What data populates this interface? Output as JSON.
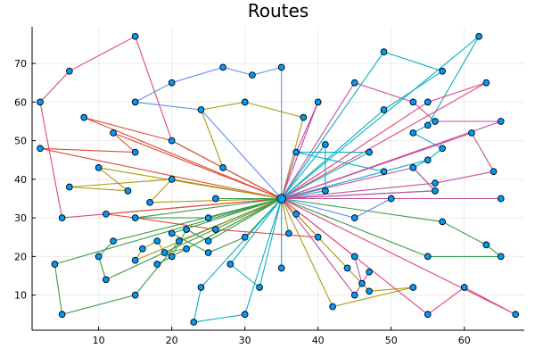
{
  "chart_data": {
    "type": "line",
    "title": "Routes",
    "xlabel": "",
    "ylabel": "",
    "xlim": [
      0.9,
      68.2
    ],
    "ylim": [
      0.9,
      79.5
    ],
    "xticks": [
      10,
      20,
      30,
      40,
      50,
      60
    ],
    "yticks": [
      10,
      20,
      30,
      40,
      50,
      60,
      70
    ],
    "grid": true,
    "legend": "none",
    "depot": [
      35,
      35
    ],
    "marker_color": "#009AFA",
    "series": [
      {
        "color": "#E0457B",
        "points": [
          [
            35,
            35
          ],
          [
            5,
            30
          ],
          [
            2,
            60
          ],
          [
            6,
            68
          ],
          [
            15,
            77
          ],
          [
            20,
            50
          ],
          [
            35,
            35
          ]
        ]
      },
      {
        "color": "#5B8DEB",
        "points": [
          [
            35,
            35
          ],
          [
            35,
            69
          ],
          [
            31,
            67
          ],
          [
            27,
            69
          ],
          [
            20,
            65
          ],
          [
            15,
            60
          ],
          [
            24,
            58
          ],
          [
            35,
            35
          ]
        ]
      },
      {
        "color": "#A89A14",
        "points": [
          [
            35,
            35
          ],
          [
            38,
            56
          ],
          [
            30,
            60
          ],
          [
            24,
            58
          ],
          [
            27,
            43
          ],
          [
            35,
            35
          ]
        ]
      },
      {
        "color": "#C54D9E",
        "points": [
          [
            35,
            35
          ],
          [
            40,
            60
          ],
          [
            37,
            47
          ],
          [
            35,
            35
          ]
        ]
      },
      {
        "color": "#C54D9E",
        "points": [
          [
            35,
            35
          ],
          [
            45,
            65
          ],
          [
            53,
            60
          ],
          [
            56,
            55
          ],
          [
            65,
            55
          ],
          [
            35,
            35
          ]
        ]
      },
      {
        "color": "#0EADC2",
        "points": [
          [
            35,
            35
          ],
          [
            49,
            73
          ],
          [
            57,
            68
          ],
          [
            49,
            58
          ],
          [
            35,
            35
          ]
        ]
      },
      {
        "color": "#0EADC2",
        "points": [
          [
            35,
            35
          ],
          [
            62,
            77
          ],
          [
            55,
            54
          ],
          [
            53,
            52
          ],
          [
            57,
            48
          ],
          [
            55,
            45
          ],
          [
            53,
            43
          ],
          [
            56,
            37
          ],
          [
            35,
            35
          ]
        ]
      },
      {
        "color": "#E0457B",
        "points": [
          [
            35,
            35
          ],
          [
            63,
            65
          ],
          [
            55,
            60
          ],
          [
            35,
            35
          ]
        ]
      },
      {
        "color": "#E04B3A",
        "points": [
          [
            35,
            35
          ],
          [
            8,
            56
          ],
          [
            20,
            50
          ],
          [
            35,
            35
          ]
        ]
      },
      {
        "color": "#E04B3A",
        "points": [
          [
            35,
            35
          ],
          [
            2,
            48
          ],
          [
            15,
            47
          ],
          [
            12,
            52
          ],
          [
            35,
            35
          ]
        ]
      },
      {
        "color": "#A89A14",
        "points": [
          [
            35,
            35
          ],
          [
            10,
            43
          ],
          [
            14,
            37
          ],
          [
            6,
            38
          ],
          [
            20,
            40
          ],
          [
            35,
            35
          ]
        ]
      },
      {
        "color": "#A89A14",
        "points": [
          [
            35,
            35
          ],
          [
            17,
            34
          ],
          [
            20,
            40
          ],
          [
            35,
            35
          ]
        ]
      },
      {
        "color": "#E04B3A",
        "points": [
          [
            35,
            35
          ],
          [
            11,
            31
          ],
          [
            15,
            30
          ],
          [
            26,
            27
          ],
          [
            40,
            25
          ],
          [
            35,
            35
          ]
        ]
      },
      {
        "color": "#3A9B4A",
        "points": [
          [
            35,
            35
          ],
          [
            12,
            24
          ],
          [
            10,
            20
          ],
          [
            11,
            14
          ],
          [
            35,
            35
          ]
        ]
      },
      {
        "color": "#3A9B4A",
        "points": [
          [
            35,
            35
          ],
          [
            4,
            18
          ],
          [
            5,
            5
          ],
          [
            15,
            10
          ],
          [
            21,
            24
          ],
          [
            35,
            35
          ]
        ]
      },
      {
        "color": "#A89A14",
        "points": [
          [
            35,
            35
          ],
          [
            15,
            19
          ],
          [
            16,
            22
          ],
          [
            18,
            24
          ],
          [
            19,
            21
          ],
          [
            22,
            22
          ],
          [
            35,
            35
          ]
        ]
      },
      {
        "color": "#3A9B4A",
        "points": [
          [
            35,
            35
          ],
          [
            18,
            18
          ],
          [
            20,
            20
          ],
          [
            22,
            27
          ],
          [
            25,
            24
          ],
          [
            35,
            35
          ]
        ]
      },
      {
        "color": "#3A9B4A",
        "points": [
          [
            35,
            35
          ],
          [
            20,
            26
          ],
          [
            25,
            21
          ],
          [
            30,
            25
          ],
          [
            35,
            35
          ]
        ]
      },
      {
        "color": "#3A9B4A",
        "points": [
          [
            35,
            35
          ],
          [
            25,
            30
          ],
          [
            15,
            30
          ],
          [
            35,
            35
          ]
        ]
      },
      {
        "color": "#3A9B4A",
        "points": [
          [
            35,
            35
          ],
          [
            26,
            35
          ],
          [
            35,
            35
          ]
        ]
      },
      {
        "color": "#0EADC2",
        "points": [
          [
            35,
            35
          ],
          [
            28,
            18
          ],
          [
            32,
            12
          ],
          [
            35,
            35
          ]
        ]
      },
      {
        "color": "#0EADC2",
        "points": [
          [
            35,
            35
          ],
          [
            24,
            12
          ],
          [
            23,
            3
          ],
          [
            30,
            5
          ],
          [
            35,
            35
          ]
        ]
      },
      {
        "color": "#0EADC2",
        "points": [
          [
            35,
            35
          ],
          [
            35,
            17
          ],
          [
            35,
            35
          ]
        ]
      },
      {
        "color": "#A89A14",
        "points": [
          [
            35,
            35
          ],
          [
            36,
            26
          ],
          [
            35,
            35
          ]
        ]
      },
      {
        "color": "#A89A14",
        "points": [
          [
            35,
            35
          ],
          [
            37,
            31
          ],
          [
            44,
            17
          ],
          [
            47,
            11
          ],
          [
            53,
            12
          ],
          [
            42,
            7
          ],
          [
            35,
            35
          ]
        ]
      },
      {
        "color": "#C54D9E",
        "points": [
          [
            35,
            35
          ],
          [
            45,
            10
          ],
          [
            47,
            16
          ],
          [
            46,
            13
          ],
          [
            45,
            20
          ],
          [
            35,
            35
          ]
        ]
      },
      {
        "color": "#E0457B",
        "points": [
          [
            35,
            35
          ],
          [
            45,
            20
          ],
          [
            55,
            5
          ],
          [
            60,
            12
          ],
          [
            67,
            5
          ],
          [
            35,
            35
          ]
        ]
      },
      {
        "color": "#5B8DEB",
        "points": [
          [
            35,
            35
          ],
          [
            45,
            30
          ],
          [
            50,
            35
          ],
          [
            35,
            35
          ]
        ]
      },
      {
        "color": "#3A9B4A",
        "points": [
          [
            35,
            35
          ],
          [
            55,
            20
          ],
          [
            65,
            20
          ],
          [
            63,
            23
          ],
          [
            57,
            29
          ],
          [
            35,
            35
          ]
        ]
      },
      {
        "color": "#0EADC2",
        "points": [
          [
            35,
            35
          ],
          [
            41,
            37
          ],
          [
            41,
            49
          ],
          [
            35,
            35
          ]
        ]
      },
      {
        "color": "#0EADC2",
        "points": [
          [
            35,
            35
          ],
          [
            47,
            47
          ],
          [
            37,
            47
          ],
          [
            49,
            42
          ],
          [
            55,
            45
          ],
          [
            35,
            35
          ]
        ]
      },
      {
        "color": "#C54D9E",
        "points": [
          [
            35,
            35
          ],
          [
            65,
            35
          ],
          [
            35,
            35
          ]
        ]
      },
      {
        "color": "#C54D9E",
        "points": [
          [
            35,
            35
          ],
          [
            56,
            39
          ],
          [
            64,
            42
          ],
          [
            61,
            52
          ],
          [
            35,
            35
          ]
        ]
      },
      {
        "color": "#C54D9E",
        "points": [
          [
            35,
            35
          ],
          [
            56,
            37
          ],
          [
            53,
            43
          ],
          [
            35,
            35
          ]
        ]
      }
    ],
    "extra_points": [
      [
        55,
        60
      ],
      [
        55,
        54
      ],
      [
        61,
        52
      ],
      [
        49,
        58
      ],
      [
        57,
        68
      ],
      [
        45,
        65
      ]
    ]
  }
}
